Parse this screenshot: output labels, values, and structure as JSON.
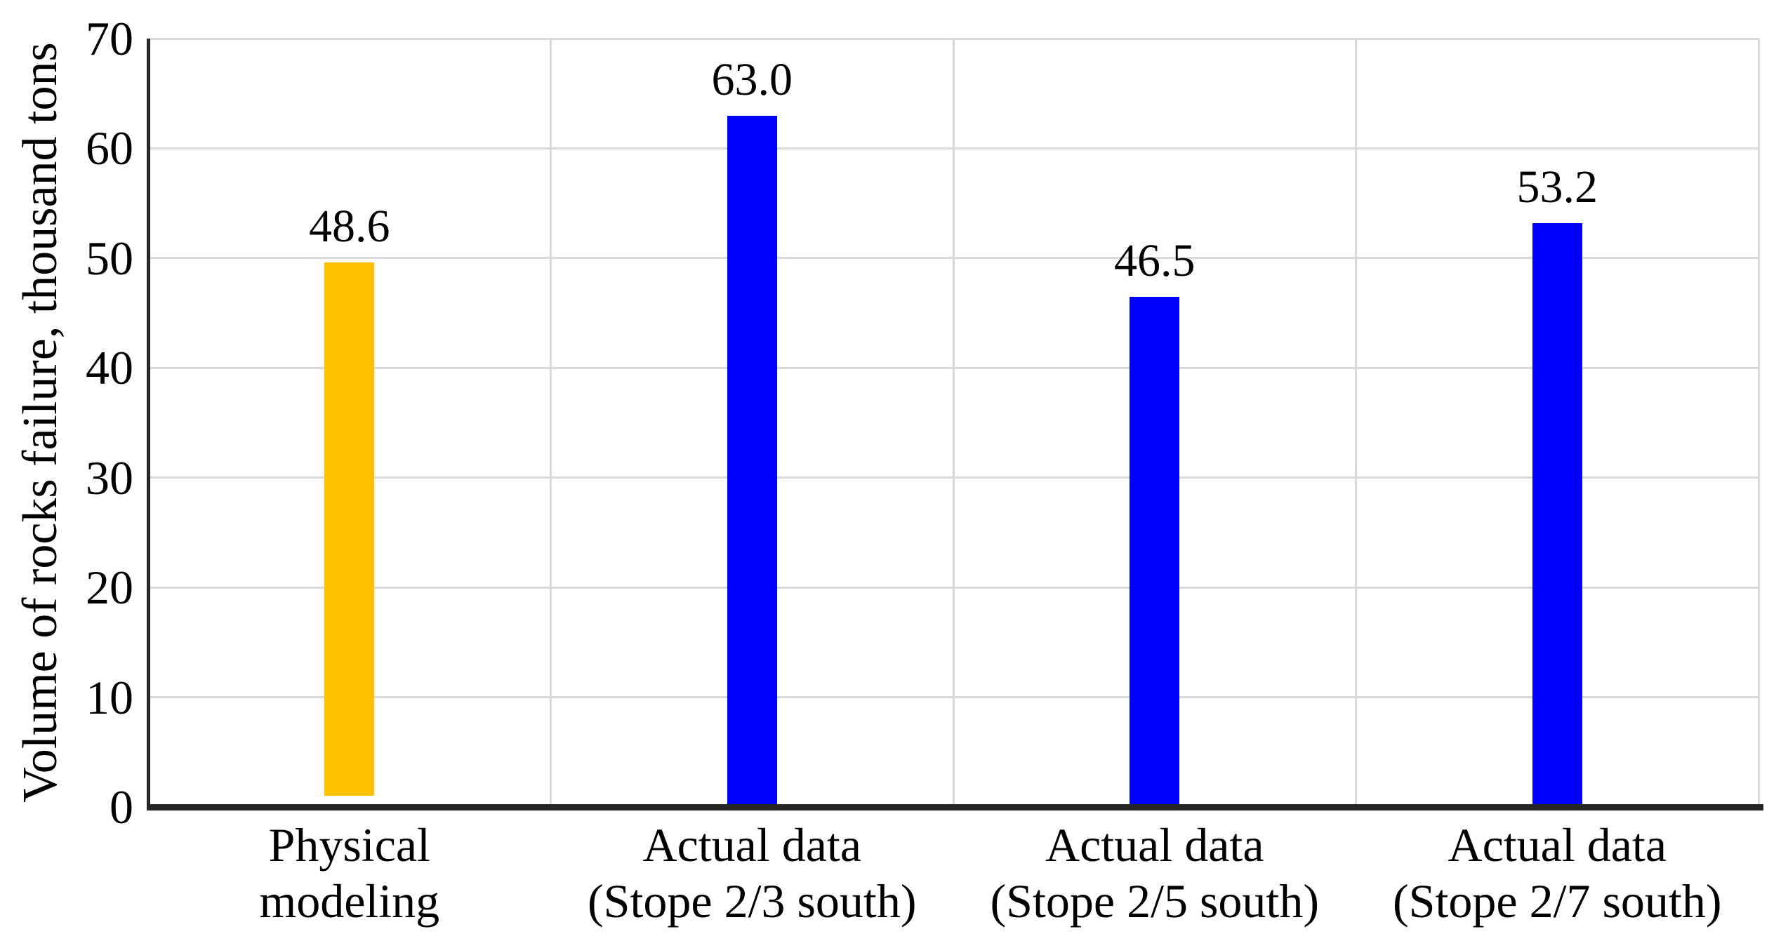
{
  "chart_data": {
    "type": "bar",
    "title": "",
    "xlabel": "",
    "ylabel": "Volume of rocks failure, thousand tons",
    "ylim": [
      0,
      70
    ],
    "yticks": [
      0,
      10,
      20,
      30,
      40,
      50,
      60,
      70
    ],
    "grid": "light gray horizontal gridlines at every 10 units and vertical gridlines at category boundaries",
    "legend": "none",
    "categories": [
      [
        "Physical",
        "modeling"
      ],
      [
        "Actual data",
        "(Stope 2/3 south)"
      ],
      [
        "Actual data",
        "(Stope 2/5 south)"
      ],
      [
        "Actual data",
        "(Stope 2/7 south)"
      ]
    ],
    "values": [
      48.6,
      63.0,
      46.5,
      53.2
    ],
    "value_labels": [
      "48.6",
      "63.0",
      "46.5",
      "53.2"
    ],
    "bar_colors": [
      "#FFC000",
      "#0000FF",
      "#0000FF",
      "#0000FF"
    ],
    "bar_base_offsets": [
      1.0,
      0,
      0,
      0
    ],
    "colors": {
      "axis": "#262626",
      "grid": "#D9D9D9",
      "text": "#000000",
      "orange_bar": "#FFC000",
      "blue_bar": "#0000FF",
      "background": "#FFFFFF"
    }
  }
}
